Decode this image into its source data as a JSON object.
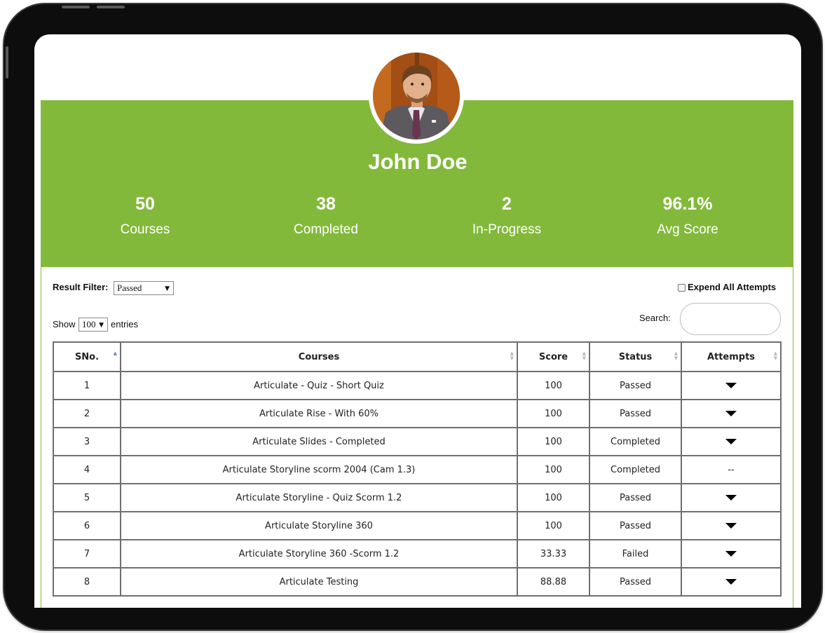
{
  "profile": {
    "name": "John Doe",
    "stats": [
      {
        "value": "50",
        "label": "Courses"
      },
      {
        "value": "38",
        "label": "Completed"
      },
      {
        "value": "2",
        "label": "In-Progress"
      },
      {
        "value": "96.1%",
        "label": "Avg Score"
      }
    ]
  },
  "controls": {
    "result_filter_label": "Result Filter:",
    "result_filter_value": "Passed",
    "expand_label": "Expend All Attempts",
    "show_label": "Show",
    "entries_value": "100",
    "entries_label": "entries",
    "search_label": "Search:"
  },
  "table": {
    "columns": [
      "SNo.",
      "Courses",
      "Score",
      "Status",
      "Attempts"
    ],
    "rows": [
      {
        "sno": "1",
        "course": "Articulate - Quiz - Short Quiz",
        "score": "100",
        "status": "Passed",
        "attempts": "expand"
      },
      {
        "sno": "2",
        "course": "Articulate Rise - With 60%",
        "score": "100",
        "status": "Passed",
        "attempts": "expand"
      },
      {
        "sno": "3",
        "course": "Articulate Slides - Completed",
        "score": "100",
        "status": "Completed",
        "attempts": "expand"
      },
      {
        "sno": "4",
        "course": "Articulate Storyline scorm 2004 (Cam 1.3)",
        "score": "100",
        "status": "Completed",
        "attempts": "--"
      },
      {
        "sno": "5",
        "course": "Articulate Storyline - Quiz Scorm 1.2",
        "score": "100",
        "status": "Passed",
        "attempts": "expand"
      },
      {
        "sno": "6",
        "course": "Articulate Storyline 360",
        "score": "100",
        "status": "Passed",
        "attempts": "expand"
      },
      {
        "sno": "7",
        "course": "Articulate Storyline 360 -Scorm 1.2",
        "score": "33.33",
        "status": "Failed",
        "attempts": "expand"
      },
      {
        "sno": "8",
        "course": "Articulate Testing",
        "score": "88.88",
        "status": "Passed",
        "attempts": "expand"
      }
    ]
  },
  "colors": {
    "accent_green": "#83b93a",
    "frame": "#0d0d0d",
    "table_border": "#6f6f6f"
  },
  "icons": {
    "attempts_toggle": "caret-down-icon",
    "sort_asc": "sort-asc-icon",
    "sort_both": "sort-icon"
  }
}
